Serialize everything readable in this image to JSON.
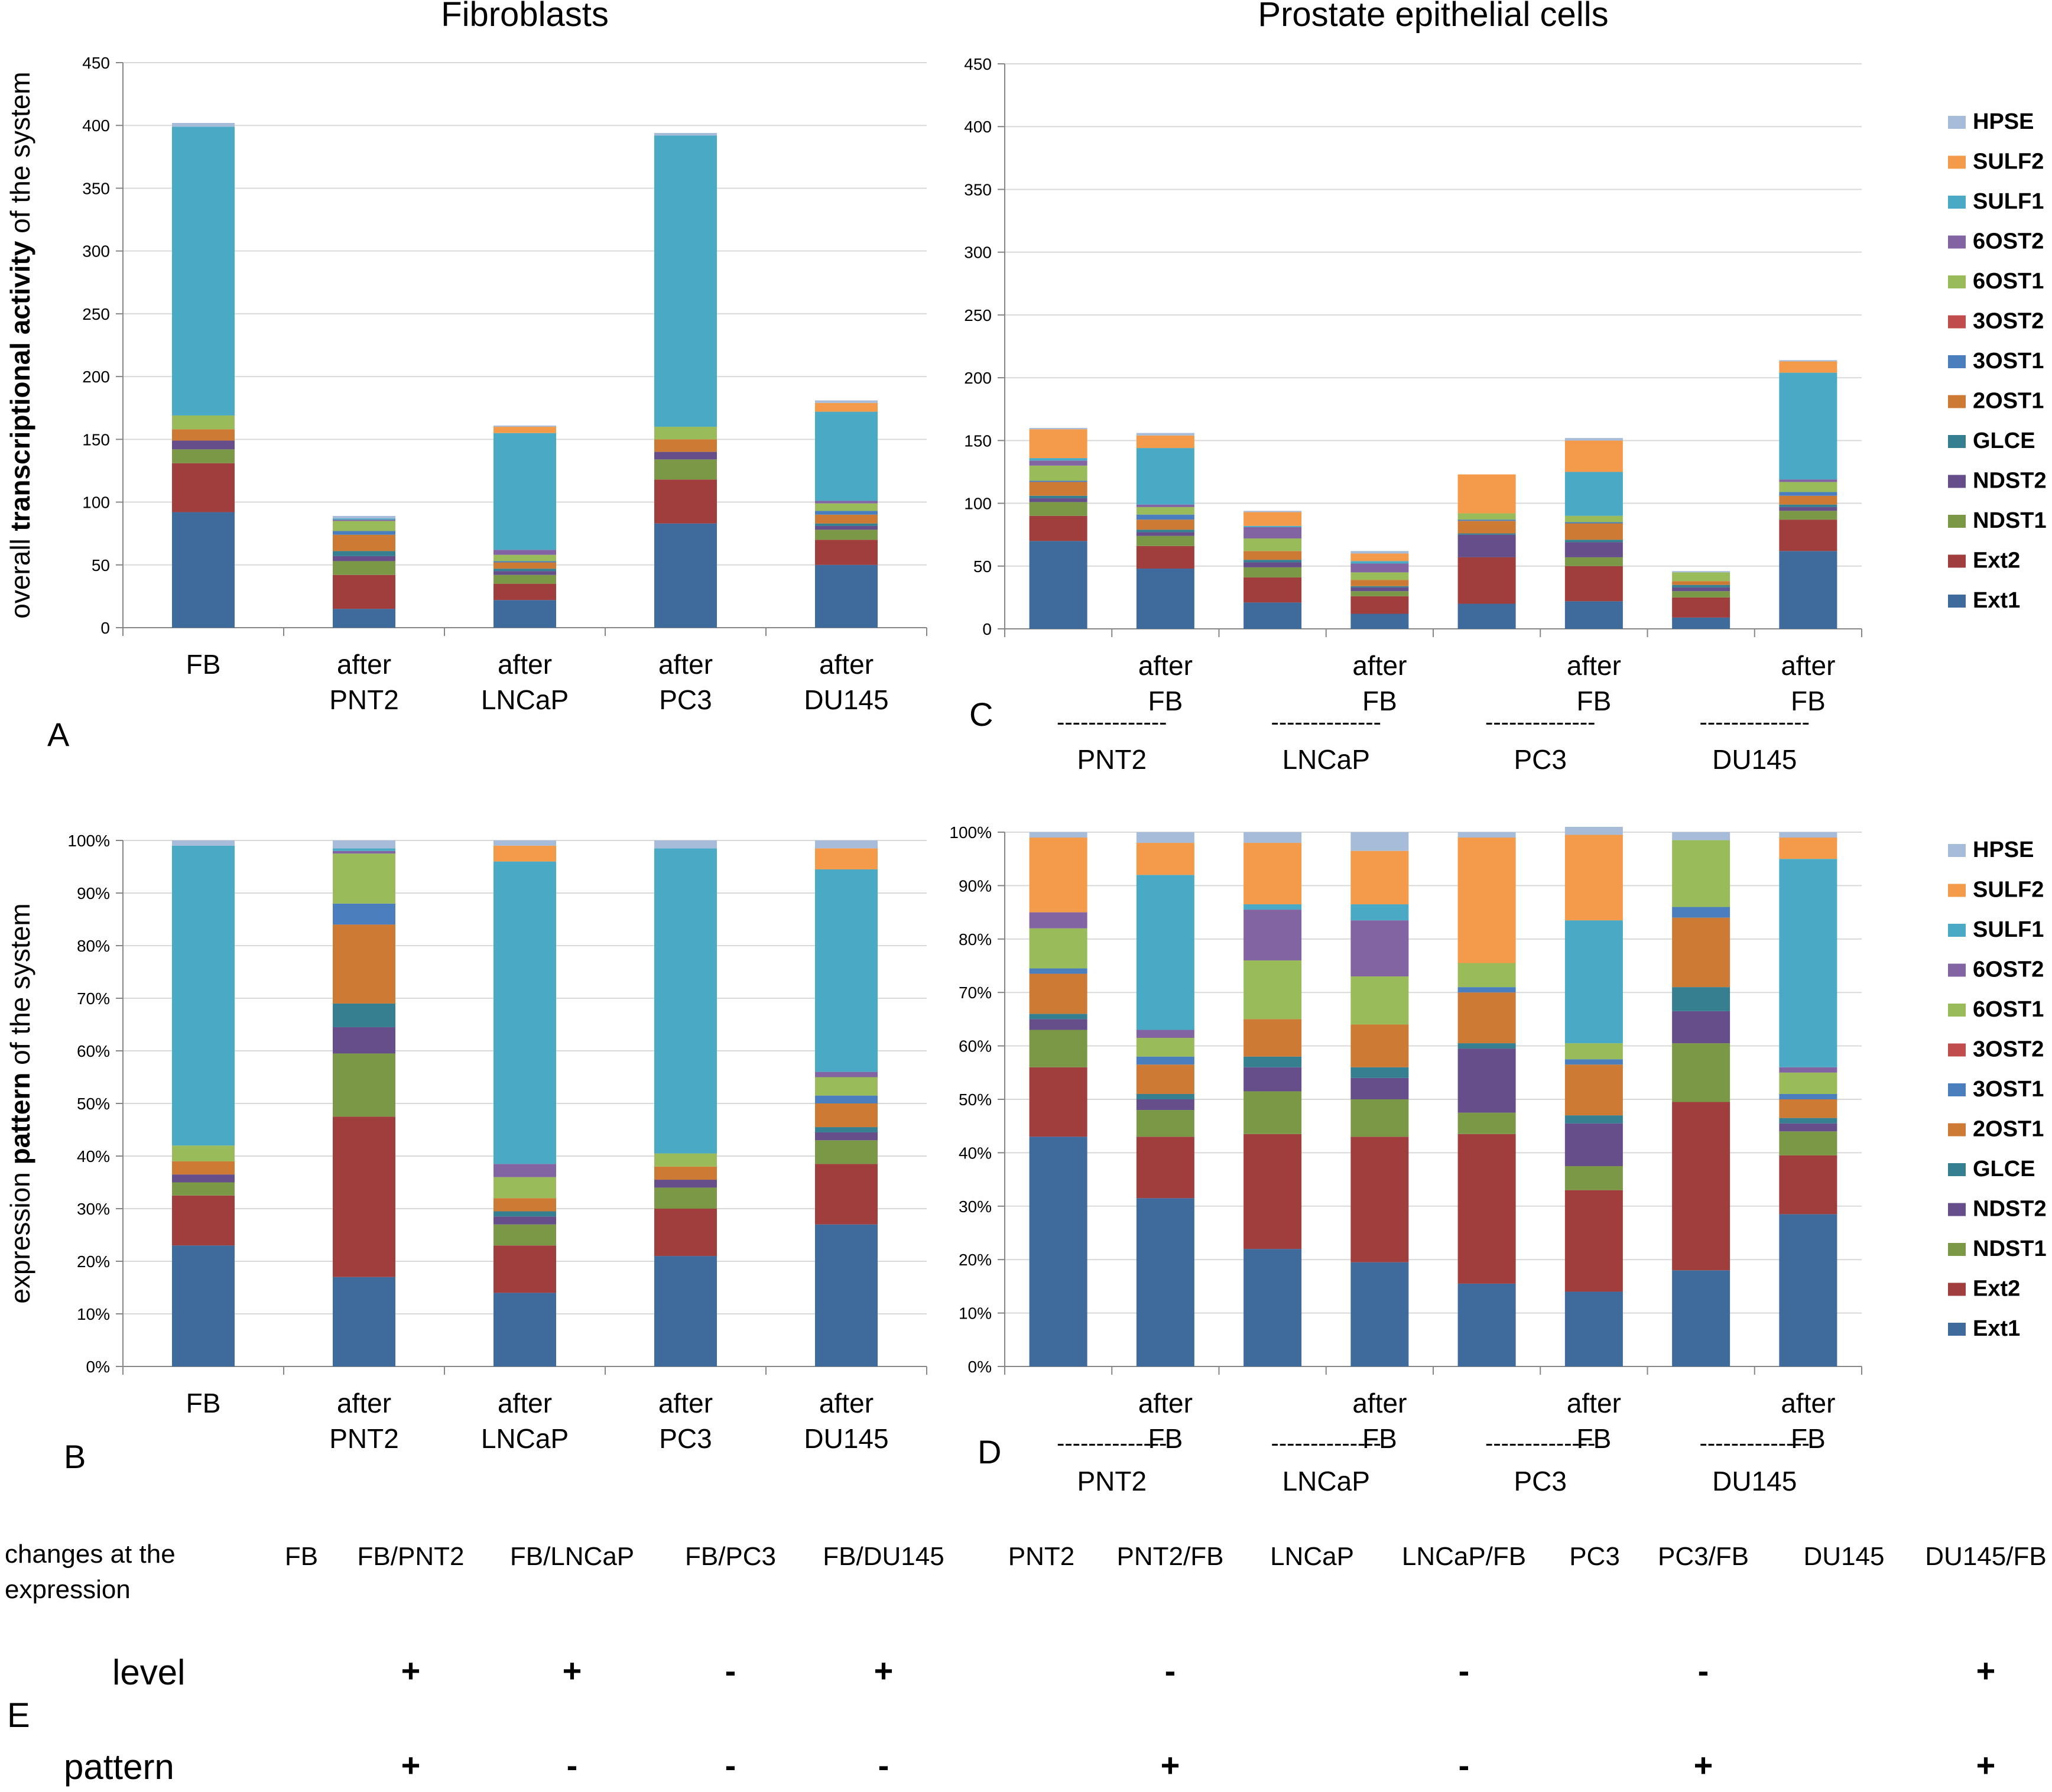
{
  "colors": {
    "Ext1": "#3f6a9c",
    "Ext2": "#a03d3d",
    "NDST1": "#7a9846",
    "NDST2": "#654e8a",
    "GLCE": "#357f91",
    "2OST1": "#cd7a35",
    "3OST1": "#4a7ebc",
    "3OST2": "#c04c4c",
    "6OST1": "#9abb5a",
    "6OST2": "#8264a2",
    "SULF1": "#4aa9c4",
    "SULF2": "#f39a4b",
    "HPSE": "#a7bcd9",
    "grid": "#d9d9d9",
    "axis": "#868686"
  },
  "panels": {
    "A": "A",
    "B": "B",
    "C": "C",
    "D": "D",
    "E": "E"
  },
  "chart_data": [
    {
      "id": "A",
      "type": "stacked-bar",
      "title": "Fibroblasts",
      "ylabel_parts": [
        "overall ",
        "transcriptional activity",
        " of the system"
      ],
      "ylim": [
        0,
        450
      ],
      "yticks": [
        "0",
        "50",
        "100",
        "150",
        "200",
        "250",
        "300",
        "350",
        "400",
        "450"
      ],
      "categories": [
        [
          "FB"
        ],
        [
          "after",
          "PNT2"
        ],
        [
          "after",
          "LNCaP"
        ],
        [
          "after",
          "PC3"
        ],
        [
          "after",
          "DU145"
        ]
      ],
      "series": [
        {
          "name": "Ext1",
          "values": [
            92,
            15,
            22,
            83,
            50
          ]
        },
        {
          "name": "Ext2",
          "values": [
            39,
            27,
            13,
            35,
            20
          ]
        },
        {
          "name": "NDST1",
          "values": [
            11,
            11,
            7,
            16,
            8
          ]
        },
        {
          "name": "NDST2",
          "values": [
            7,
            4,
            3,
            6,
            3
          ]
        },
        {
          "name": "GLCE",
          "values": [
            0,
            4,
            2,
            0,
            2
          ]
        },
        {
          "name": "2OST1",
          "values": [
            9,
            13,
            5,
            10,
            7
          ]
        },
        {
          "name": "3OST1",
          "values": [
            0,
            3,
            1,
            0,
            3
          ]
        },
        {
          "name": "3OST2",
          "values": [
            0,
            0,
            0,
            0,
            0
          ]
        },
        {
          "name": "6OST1",
          "values": [
            11,
            8,
            5,
            10,
            6
          ]
        },
        {
          "name": "6OST2",
          "values": [
            0,
            1,
            4,
            0,
            2
          ]
        },
        {
          "name": "SULF1",
          "values": [
            230,
            1,
            93,
            232,
            71
          ]
        },
        {
          "name": "SULF2",
          "values": [
            0,
            0,
            5,
            0,
            7
          ]
        },
        {
          "name": "HPSE",
          "values": [
            3,
            2,
            1,
            2,
            2
          ]
        }
      ]
    },
    {
      "id": "C",
      "type": "stacked-bar",
      "title": "Prostate epithelial cells",
      "ylim": [
        0,
        450
      ],
      "yticks": [
        "0",
        "50",
        "100",
        "150",
        "200",
        "250",
        "300",
        "350",
        "400",
        "450"
      ],
      "categories": [
        [
          ""
        ],
        [
          "after",
          "FB"
        ],
        [
          ""
        ],
        [
          "after",
          "FB"
        ],
        [
          ""
        ],
        [
          "after",
          "FB"
        ],
        [
          ""
        ],
        [
          "after",
          "FB"
        ]
      ],
      "groups": [
        "PNT2",
        "LNCaP",
        "PC3",
        "DU145"
      ],
      "group_dash": "--------------",
      "series": [
        {
          "name": "Ext1",
          "values": [
            70,
            48,
            21,
            12,
            20,
            22,
            9,
            62
          ]
        },
        {
          "name": "Ext2",
          "values": [
            20,
            18,
            20,
            14,
            37,
            28,
            16,
            25
          ]
        },
        {
          "name": "NDST1",
          "values": [
            11,
            8,
            8,
            4,
            0,
            7,
            5,
            7
          ]
        },
        {
          "name": "NDST2",
          "values": [
            3,
            3,
            4,
            3,
            18,
            12,
            3,
            3
          ]
        },
        {
          "name": "GLCE",
          "values": [
            2,
            2,
            2,
            1,
            1,
            2,
            2,
            2
          ]
        },
        {
          "name": "2OST1",
          "values": [
            11,
            8,
            7,
            5,
            10,
            13,
            3,
            7
          ]
        },
        {
          "name": "3OST1",
          "values": [
            1,
            4,
            0,
            0,
            1,
            1,
            0,
            3
          ]
        },
        {
          "name": "3OST2",
          "values": [
            0,
            0,
            0,
            0,
            0,
            0,
            0,
            0
          ]
        },
        {
          "name": "6OST1",
          "values": [
            12,
            6,
            10,
            6,
            5,
            5,
            7,
            8
          ]
        },
        {
          "name": "6OST2",
          "values": [
            4,
            2,
            9,
            7,
            0,
            0,
            0,
            2
          ]
        },
        {
          "name": "SULF1",
          "values": [
            2,
            45,
            1,
            2,
            0,
            35,
            0,
            85
          ]
        },
        {
          "name": "SULF2",
          "values": [
            23,
            10,
            11,
            6,
            31,
            25,
            0,
            9
          ]
        },
        {
          "name": "HPSE",
          "values": [
            1,
            2,
            1,
            2,
            0,
            2,
            1,
            1
          ]
        }
      ]
    },
    {
      "id": "B",
      "type": "stacked-bar-percent",
      "ylabel_parts": [
        "expression ",
        "pattern",
        " of the system"
      ],
      "ylim": [
        0,
        100
      ],
      "yticks": [
        "0%",
        "10%",
        "20%",
        "30%",
        "40%",
        "50%",
        "60%",
        "70%",
        "80%",
        "90%",
        "100%"
      ],
      "categories": [
        [
          "FB"
        ],
        [
          "after",
          "PNT2"
        ],
        [
          "after",
          "LNCaP"
        ],
        [
          "after",
          "PC3"
        ],
        [
          "after",
          "DU145"
        ]
      ],
      "series": [
        {
          "name": "Ext1",
          "values": [
            23,
            17,
            14,
            21,
            27
          ]
        },
        {
          "name": "Ext2",
          "values": [
            9.5,
            30.5,
            9,
            9,
            11.5
          ]
        },
        {
          "name": "NDST1",
          "values": [
            2.5,
            12,
            4,
            4,
            4.5
          ]
        },
        {
          "name": "NDST2",
          "values": [
            1.5,
            5,
            1.5,
            1.5,
            1.5
          ]
        },
        {
          "name": "GLCE",
          "values": [
            0,
            4.5,
            1,
            0,
            1
          ]
        },
        {
          "name": "2OST1",
          "values": [
            2.5,
            15,
            2.5,
            2.5,
            4.5
          ]
        },
        {
          "name": "3OST1",
          "values": [
            0,
            4,
            0,
            0,
            1.5
          ]
        },
        {
          "name": "3OST2",
          "values": [
            0,
            0,
            0,
            0,
            0
          ]
        },
        {
          "name": "6OST1",
          "values": [
            3,
            9.5,
            4,
            2.5,
            3.5
          ]
        },
        {
          "name": "6OST2",
          "values": [
            0,
            0.5,
            2.5,
            0,
            1
          ]
        },
        {
          "name": "SULF1",
          "values": [
            57,
            0.5,
            57.5,
            58,
            38.5
          ]
        },
        {
          "name": "SULF2",
          "values": [
            0,
            0,
            3,
            0,
            4
          ]
        },
        {
          "name": "HPSE",
          "values": [
            1,
            1.5,
            1,
            1.5,
            1.5
          ]
        }
      ]
    },
    {
      "id": "D",
      "type": "stacked-bar-percent",
      "ylim": [
        0,
        100
      ],
      "yticks": [
        "0%",
        "10%",
        "20%",
        "30%",
        "40%",
        "50%",
        "60%",
        "70%",
        "80%",
        "90%",
        "100%"
      ],
      "categories": [
        [
          ""
        ],
        [
          "after",
          "FB"
        ],
        [
          ""
        ],
        [
          "after",
          "FB"
        ],
        [
          ""
        ],
        [
          "after",
          "FB"
        ],
        [
          ""
        ],
        [
          "after",
          "FB"
        ]
      ],
      "groups": [
        "PNT2",
        "LNCaP",
        "PC3",
        "DU145"
      ],
      "group_dash": "--------------",
      "series": [
        {
          "name": "Ext1",
          "values": [
            43,
            31.5,
            22,
            19.5,
            15.5,
            14,
            18,
            28.5
          ]
        },
        {
          "name": "Ext2",
          "values": [
            13,
            11.5,
            21.5,
            23.5,
            28,
            19,
            31.5,
            11
          ]
        },
        {
          "name": "NDST1",
          "values": [
            7,
            5,
            8,
            7,
            4,
            4.5,
            11,
            4.5
          ]
        },
        {
          "name": "NDST2",
          "values": [
            2,
            2,
            4.5,
            4,
            12,
            8,
            6,
            1.5
          ]
        },
        {
          "name": "GLCE",
          "values": [
            1,
            1,
            2,
            2,
            1,
            1.5,
            4.5,
            1
          ]
        },
        {
          "name": "2OST1",
          "values": [
            7.5,
            5.5,
            7,
            8,
            9.5,
            9.5,
            13,
            3.5
          ]
        },
        {
          "name": "3OST1",
          "values": [
            1,
            1.5,
            0,
            0,
            1,
            1,
            2,
            1
          ]
        },
        {
          "name": "3OST2",
          "values": [
            0,
            0,
            0,
            0,
            0,
            0,
            0,
            0
          ]
        },
        {
          "name": "6OST1",
          "values": [
            7.5,
            3.5,
            11,
            9,
            4.5,
            3,
            12.5,
            4
          ]
        },
        {
          "name": "6OST2",
          "values": [
            3,
            1.5,
            9.5,
            10.5,
            0,
            0,
            0,
            1
          ]
        },
        {
          "name": "SULF1",
          "values": [
            0,
            29,
            1,
            3,
            0,
            23,
            0,
            39
          ]
        },
        {
          "name": "SULF2",
          "values": [
            14,
            6,
            11.5,
            10,
            23.5,
            16,
            0,
            4
          ]
        },
        {
          "name": "HPSE",
          "values": [
            1,
            2,
            2,
            3.5,
            1,
            1.5,
            1.5,
            1
          ]
        }
      ]
    }
  ],
  "legend": {
    "order": [
      "HPSE",
      "SULF2",
      "SULF1",
      "6OST2",
      "6OST1",
      "3OST2",
      "3OST1",
      "2OST1",
      "GLCE",
      "NDST2",
      "NDST1",
      "Ext2",
      "Ext1"
    ]
  },
  "table": {
    "heading": [
      "changes at the",
      "expression"
    ],
    "columns": [
      "FB",
      "FB/PNT2",
      "FB/LNCaP",
      "FB/PC3",
      "FB/DU145",
      "PNT2",
      "PNT2/FB",
      "LNCaP",
      "LNCaP/FB",
      "PC3",
      "PC3/FB",
      "DU145",
      "DU145/FB"
    ],
    "rows": [
      {
        "label": "level",
        "values": [
          "",
          "+",
          "+",
          "-",
          "+",
          "",
          "-",
          "",
          "-",
          "",
          "-",
          "",
          "+"
        ]
      },
      {
        "label": "pattern",
        "values": [
          "",
          "+",
          "-",
          "-",
          "-",
          "",
          "+",
          "",
          "-",
          "",
          "+",
          "",
          "+"
        ]
      }
    ]
  }
}
